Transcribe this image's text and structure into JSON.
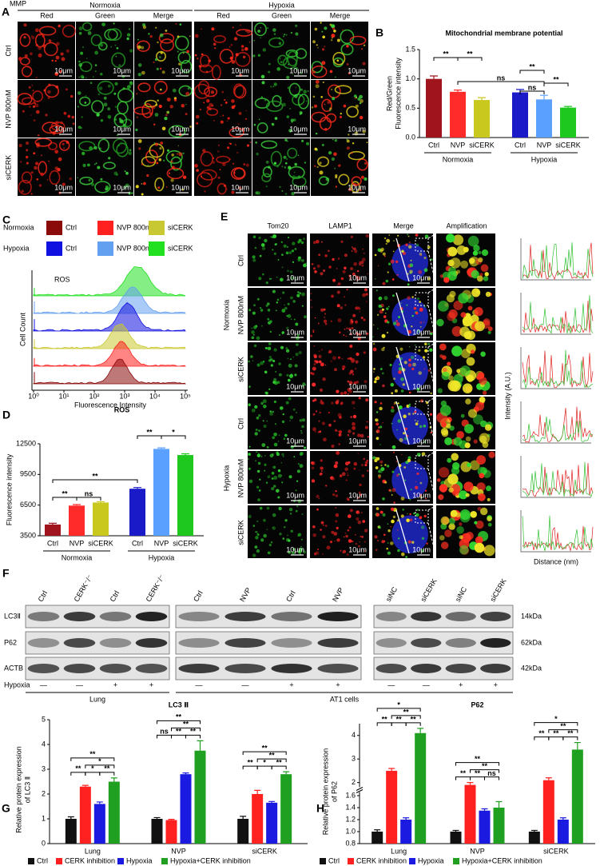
{
  "figure": {
    "panel_labels": [
      "A",
      "B",
      "C",
      "D",
      "E",
      "F",
      "G",
      "H"
    ],
    "panel_a": {
      "title": "MMP",
      "conditions": [
        "Normoxia",
        "Hypoxia"
      ],
      "channels": [
        "Red",
        "Green",
        "Merge"
      ],
      "rows": [
        "Ctrl",
        "NVP 800nM",
        "siCERK"
      ],
      "scale_bar": "10μm"
    },
    "panel_c": {
      "legend": [
        {
          "condition": "Normoxia",
          "items": [
            {
              "name": "Ctrl",
              "color": "#8b0a0a"
            },
            {
              "name": "NVP 800nM",
              "color": "#ff2020"
            },
            {
              "name": "siCERK",
              "color": "#c8c832"
            }
          ]
        },
        {
          "condition": "Hypoxia",
          "items": [
            {
              "name": "Ctrl",
              "color": "#1010e0"
            },
            {
              "name": "NVP 800nM",
              "color": "#64a0f0"
            },
            {
              "name": "siCERK",
              "color": "#20e020"
            }
          ]
        }
      ],
      "annotation": "ROS",
      "ylabel": "Cell Count",
      "xlabel": "Fluorescence Intensity",
      "xticks": [
        "10⁰",
        "10¹",
        "10²",
        "10³",
        "10⁴",
        "10⁵"
      ]
    },
    "panel_e": {
      "columns": [
        "Tom20",
        "LAMP1",
        "Merge",
        "Amplification"
      ],
      "conditions": [
        "Normoxia",
        "Hypoxia"
      ],
      "rows": [
        "Ctrl",
        "NVP 800nM",
        "siCERK"
      ],
      "scale_bar": "10μm",
      "profile_ylabel": "Intensity (A.U.)",
      "profile_xlabel": "Distance (nm)"
    },
    "panel_f": {
      "blots": [
        {
          "lanes": [
            "Ctrl",
            "CERK⁻/⁻",
            "Ctrl",
            "CERK⁻/⁻"
          ]
        },
        {
          "lanes": [
            "Ctrl",
            "NVP",
            "Ctrl",
            "NVP"
          ]
        },
        {
          "lanes": [
            "siNC",
            "siCERK",
            "siNC",
            "siCERK"
          ]
        }
      ],
      "proteins": [
        "LC3Ⅱ",
        "P62",
        "ACTB"
      ],
      "sizes": [
        "14kDa",
        "62kDa",
        "42kDa"
      ],
      "condition": "Hypoxia",
      "signs": [
        "—",
        "—",
        "+",
        "+",
        "—",
        "—",
        "+",
        "+",
        "—",
        "—",
        "+",
        "+"
      ],
      "groups": [
        "Lung",
        "AT1 cells"
      ]
    }
  },
  "chart_data": [
    {
      "type": "bar",
      "title": "Mitochondrial membrane potential",
      "ylabel": [
        "Red/Green",
        "Fluorescence intensity"
      ],
      "categories": [
        "Ctrl",
        "NVP",
        "siCERK",
        "Ctrl",
        "NVP",
        "siCERK"
      ],
      "groups": [
        "Normoxia",
        "Hypoxia"
      ],
      "values": [
        1.0,
        0.78,
        0.64,
        0.77,
        0.65,
        0.51
      ],
      "errors": [
        0.05,
        0.03,
        0.04,
        0.05,
        0.07,
        0.02
      ],
      "colors": [
        "#a0141e",
        "#ff2a2a",
        "#c8c81e",
        "#1a1ac8",
        "#5aa0ff",
        "#1ec81e"
      ],
      "ylim": [
        0,
        1.5
      ],
      "yticks": [
        {
          "value": 0,
          "label": "0.0"
        },
        0.5,
        {
          "value": 1,
          "label": "1.0"
        },
        1.5
      ],
      "annotations": [
        {
          "text": "**",
          "from": 0,
          "to": 1
        },
        {
          "text": "**",
          "from": 1,
          "to": 2
        },
        {
          "text": "ns",
          "from": 1,
          "to": 4
        },
        {
          "text": "**",
          "from": 3,
          "to": 4
        },
        {
          "text": "ns",
          "from": 3,
          "to": 4
        },
        {
          "text": "**",
          "from": 4,
          "to": 5
        }
      ]
    },
    {
      "type": "bar",
      "title": "ROS",
      "ylabel": "Fluorescence intensity",
      "categories": [
        "Ctrl",
        "NVP",
        "siCERK",
        "Ctrl",
        "NVP",
        "siCERK"
      ],
      "groups": [
        "Normoxia",
        "Hypoxia"
      ],
      "values": [
        4600,
        6450,
        6750,
        8100,
        12000,
        11400
      ],
      "errors": [
        120,
        100,
        80,
        120,
        100,
        120
      ],
      "colors": [
        "#a0141e",
        "#ff2a2a",
        "#c8c81e",
        "#1a1ac8",
        "#5aa0ff",
        "#1ec81e"
      ],
      "ylim": [
        3500,
        12500
      ],
      "yticks": [
        3500,
        6500,
        9500,
        12500
      ],
      "annotations": [
        {
          "text": "**",
          "from": 0,
          "to": 1
        },
        {
          "text": "ns",
          "from": 1,
          "to": 2
        },
        {
          "text": "**",
          "from": 0,
          "to": 3
        },
        {
          "text": "**",
          "from": 3,
          "to": 4
        },
        {
          "text": "*",
          "from": 4,
          "to": 5
        }
      ]
    },
    {
      "type": "grouped_bar",
      "title": "LC3 Ⅱ",
      "ylabel": [
        "Relative protein expression",
        "of LC3 Ⅱ"
      ],
      "categories": [
        "Lung",
        "NVP",
        "siCERK"
      ],
      "series": [
        {
          "name": "Ctrl",
          "color": "#111111",
          "values": [
            1.0,
            1.0,
            1.0
          ],
          "errors": [
            0.08,
            0.05,
            0.1
          ]
        },
        {
          "name": "CERK inhibition",
          "color": "#ff2020",
          "values": [
            2.3,
            0.95,
            2.0
          ],
          "errors": [
            0.05,
            0.03,
            0.15
          ]
        },
        {
          "name": "Hypoxia",
          "color": "#1a1ae0",
          "values": [
            1.6,
            2.8,
            1.65
          ],
          "errors": [
            0.08,
            0.05,
            0.05
          ]
        },
        {
          "name": "Hypoxia+CERK inhibition",
          "color": "#20a020",
          "values": [
            2.5,
            3.75,
            2.8
          ],
          "errors": [
            0.15,
            0.4,
            0.1
          ]
        }
      ],
      "ylim": [
        0,
        5
      ],
      "yticks": [
        0,
        1,
        2,
        3,
        4,
        5
      ],
      "annotations": [
        [
          {
            "text": "**",
            "from": 0,
            "to": 3
          },
          {
            "text": "*",
            "from": 1,
            "to": 3
          },
          {
            "text": "**",
            "from": 0,
            "to": 1
          },
          {
            "text": "*",
            "from": 1,
            "to": 2
          },
          {
            "text": "**",
            "from": 2,
            "to": 3
          }
        ],
        [
          {
            "text": "**",
            "from": 0,
            "to": 3
          },
          {
            "text": "**",
            "from": 1,
            "to": 3
          },
          {
            "text": "ns",
            "from": 0,
            "to": 1
          },
          {
            "text": "**",
            "from": 1,
            "to": 2
          },
          {
            "text": "**",
            "from": 2,
            "to": 3
          }
        ],
        [
          {
            "text": "**",
            "from": 0,
            "to": 3
          },
          {
            "text": "**",
            "from": 1,
            "to": 3
          },
          {
            "text": "**",
            "from": 0,
            "to": 1
          },
          {
            "text": "*",
            "from": 1,
            "to": 2
          },
          {
            "text": "**",
            "from": 2,
            "to": 3
          }
        ]
      ]
    },
    {
      "type": "grouped_bar",
      "title": "P62",
      "ylabel": [
        "Relative protein expression",
        "of P62"
      ],
      "categories": [
        "Lung",
        "NVP",
        "siCERK"
      ],
      "series": [
        {
          "name": "Ctrl",
          "color": "#111111",
          "values": [
            1.0,
            1.0,
            1.0
          ],
          "errors": [
            0.03,
            0.02,
            0.02
          ]
        },
        {
          "name": "CERK inhibition",
          "color": "#ff2020",
          "values": [
            2.5,
            1.9,
            2.1
          ],
          "errors": [
            0.1,
            0.1,
            0.1
          ]
        },
        {
          "name": "Hypoxia",
          "color": "#1a1ae0",
          "values": [
            1.2,
            1.35,
            1.2
          ],
          "errors": [
            0.03,
            0.03,
            0.03
          ]
        },
        {
          "name": "Hypoxia+CERK inhibition",
          "color": "#20a020",
          "values": [
            4.1,
            1.4,
            3.4
          ],
          "errors": [
            0.2,
            0.1,
            0.3
          ]
        }
      ],
      "ylim": [
        0.8,
        4.5
      ],
      "ybreak": 1.7,
      "yticks": [
        0.8,
        {
          "value": 1,
          "label": "1.0"
        },
        1.2,
        1.4,
        1.6,
        2,
        3,
        4
      ],
      "annotations": [
        [
          {
            "text": "*",
            "from": 0,
            "to": 3
          },
          {
            "text": "**",
            "from": 1,
            "to": 3
          },
          {
            "text": "**",
            "from": 0,
            "to": 1
          },
          {
            "text": "**",
            "from": 1,
            "to": 2
          },
          {
            "text": "**",
            "from": 2,
            "to": 3
          }
        ],
        [
          {
            "text": "**",
            "from": 0,
            "to": 3
          },
          {
            "text": "**",
            "from": 1,
            "to": 3
          },
          {
            "text": "**",
            "from": 0,
            "to": 1
          },
          {
            "text": "**",
            "from": 1,
            "to": 2
          },
          {
            "text": "ns",
            "from": 2,
            "to": 3
          }
        ],
        [
          {
            "text": "*",
            "from": 0,
            "to": 3
          },
          {
            "text": "**",
            "from": 1,
            "to": 3
          },
          {
            "text": "**",
            "from": 0,
            "to": 1
          },
          {
            "text": "**",
            "from": 1,
            "to": 2
          },
          {
            "text": "**",
            "from": 2,
            "to": 3
          }
        ]
      ]
    }
  ]
}
